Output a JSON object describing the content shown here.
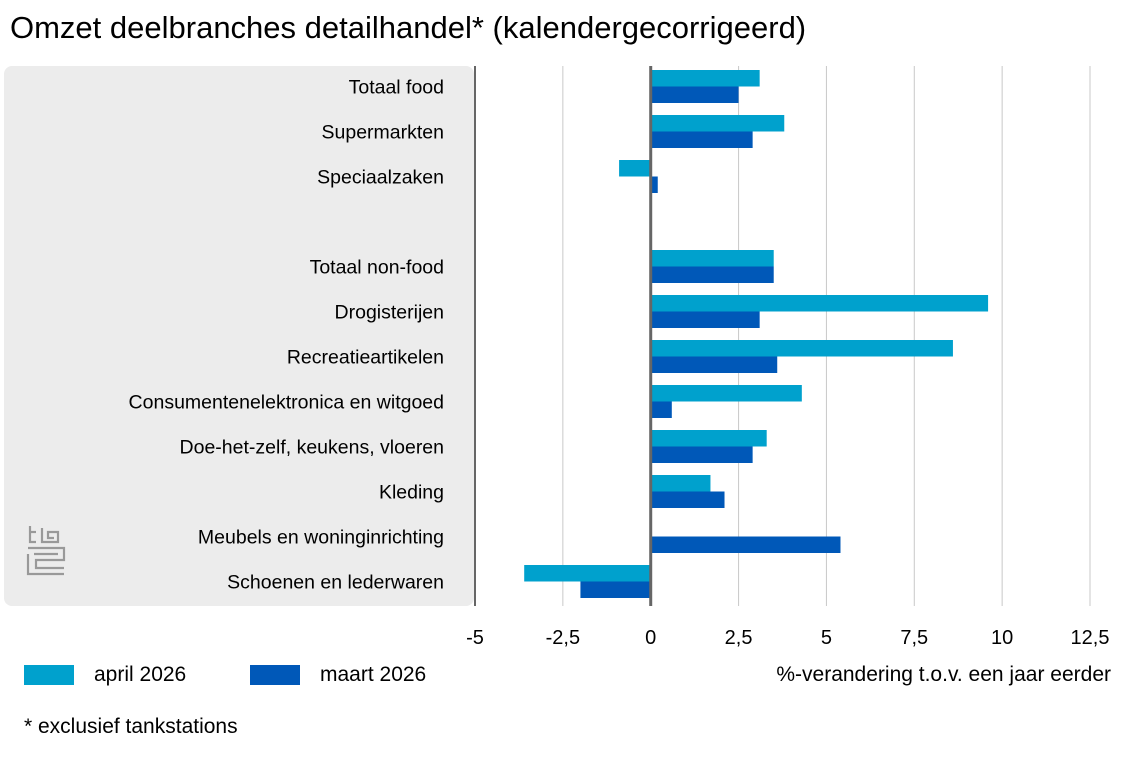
{
  "title": "Omzet deelbranches detailhandel* (kalendergecorrigeerd)",
  "footnote": "* exclusief tankstations",
  "colors": {
    "april": "#00a1cd",
    "maart": "#0058b8",
    "panel": "#ececec",
    "grid": "#c8c8c8",
    "axis": "#666666"
  },
  "logo": {
    "icon": "cbs-logo-icon"
  },
  "chart_data": {
    "type": "bar",
    "orientation": "horizontal",
    "categories": [
      "Totaal food",
      "Supermarkten",
      "Speciaalzaken",
      "",
      "Totaal non-food",
      "Drogisterijen",
      "Recreatieartikelen",
      "Consumentenelektronica en witgoed",
      "Doe-het-zelf, keukens, vloeren",
      "Kleding",
      "Meubels en woninginrichting",
      "Schoenen en lederwaren"
    ],
    "series": [
      {
        "name": "april 2026",
        "color": "#00a1cd",
        "values": [
          3.1,
          3.8,
          -0.9,
          null,
          3.5,
          9.6,
          8.6,
          4.3,
          3.3,
          1.7,
          0.0,
          -3.6
        ]
      },
      {
        "name": "maart 2026",
        "color": "#0058b8",
        "values": [
          2.5,
          2.9,
          0.2,
          null,
          3.5,
          3.1,
          3.6,
          0.6,
          2.9,
          2.1,
          5.4,
          -2.0
        ]
      }
    ],
    "xlim": [
      -5,
      12.5
    ],
    "xticks": [
      -5,
      -2.5,
      0,
      2.5,
      5,
      7.5,
      10,
      12.5
    ],
    "xtick_labels": [
      "-5",
      "-2,5",
      "0",
      "2,5",
      "5",
      "7,5",
      "10",
      "12,5"
    ],
    "xlabel": "%-verandering t.o.v. een jaar eerder",
    "grid": true,
    "legend_position": "bottom-left"
  }
}
